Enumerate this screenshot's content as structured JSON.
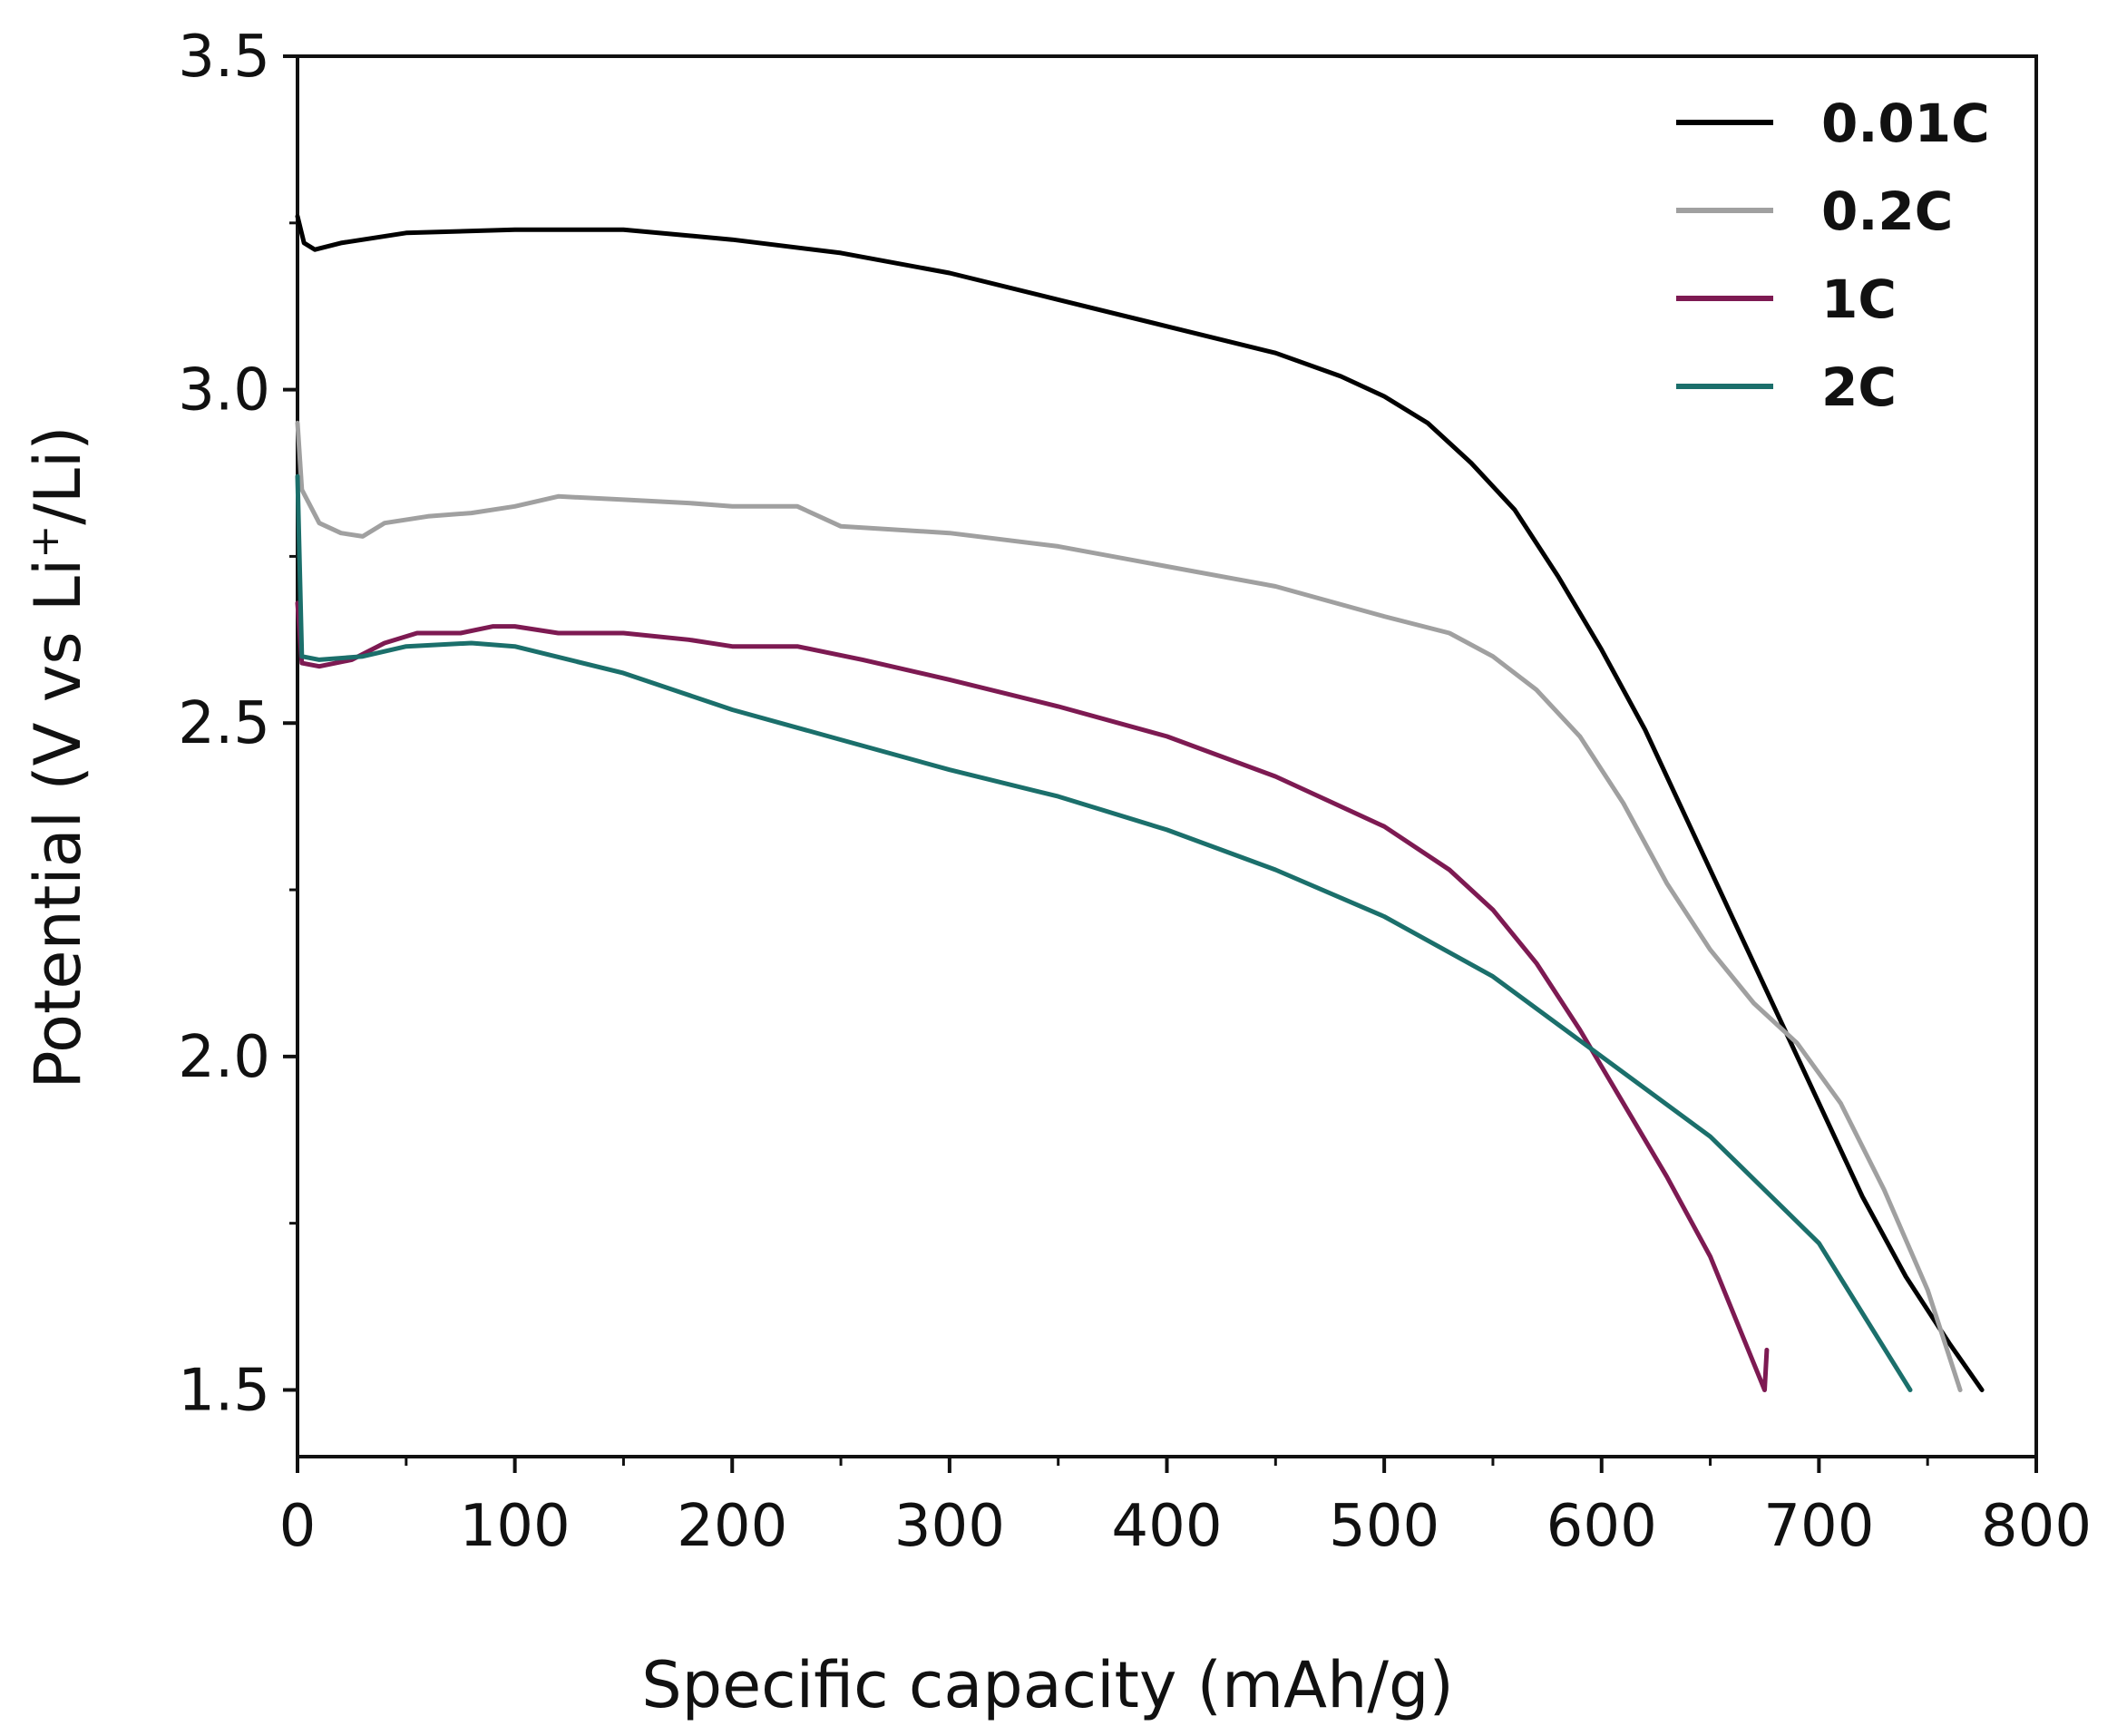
{
  "chart_data": {
    "type": "line",
    "title": "",
    "xlabel": "Specific capacity (mAh/g)",
    "ylabel": "Potential (V vs Li",
    "ylabel_sup": "+",
    "ylabel_end": "/Li)",
    "xlim": [
      0,
      800
    ],
    "ylim": [
      1.4,
      3.5
    ],
    "xticks": [
      0,
      100,
      200,
      300,
      400,
      500,
      600,
      700,
      800
    ],
    "xtick_labels": [
      "0",
      "100",
      "200",
      "300",
      "400",
      "500",
      "600",
      "700",
      "800"
    ],
    "yticks": [
      1.5,
      2.0,
      2.5,
      3.0,
      3.5
    ],
    "ytick_labels": [
      "1.5",
      "2.0",
      "2.5",
      "3.0",
      "3.5"
    ],
    "grid": false,
    "legend_position": "top-right",
    "series": [
      {
        "name": "0.01C",
        "color": "#000000",
        "points": [
          [
            0,
            3.26
          ],
          [
            3,
            3.22
          ],
          [
            8,
            3.21
          ],
          [
            20,
            3.22
          ],
          [
            50,
            3.235
          ],
          [
            100,
            3.24
          ],
          [
            150,
            3.24
          ],
          [
            200,
            3.225
          ],
          [
            250,
            3.205
          ],
          [
            300,
            3.175
          ],
          [
            350,
            3.135
          ],
          [
            400,
            3.095
          ],
          [
            450,
            3.055
          ],
          [
            480,
            3.02
          ],
          [
            500,
            2.99
          ],
          [
            520,
            2.95
          ],
          [
            540,
            2.89
          ],
          [
            560,
            2.82
          ],
          [
            580,
            2.72
          ],
          [
            600,
            2.61
          ],
          [
            620,
            2.49
          ],
          [
            640,
            2.35
          ],
          [
            660,
            2.21
          ],
          [
            680,
            2.07
          ],
          [
            700,
            1.93
          ],
          [
            720,
            1.79
          ],
          [
            740,
            1.67
          ],
          [
            760,
            1.57
          ],
          [
            775,
            1.5
          ]
        ]
      },
      {
        "name": "0.2C",
        "color": "#a0a0a0",
        "points": [
          [
            0,
            2.95
          ],
          [
            2,
            2.85
          ],
          [
            10,
            2.8
          ],
          [
            20,
            2.785
          ],
          [
            30,
            2.78
          ],
          [
            40,
            2.8
          ],
          [
            60,
            2.81
          ],
          [
            80,
            2.815
          ],
          [
            100,
            2.825
          ],
          [
            120,
            2.84
          ],
          [
            150,
            2.835
          ],
          [
            180,
            2.83
          ],
          [
            200,
            2.825
          ],
          [
            230,
            2.825
          ],
          [
            250,
            2.795
          ],
          [
            300,
            2.785
          ],
          [
            350,
            2.765
          ],
          [
            400,
            2.735
          ],
          [
            450,
            2.705
          ],
          [
            500,
            2.66
          ],
          [
            530,
            2.635
          ],
          [
            550,
            2.6
          ],
          [
            570,
            2.55
          ],
          [
            590,
            2.48
          ],
          [
            610,
            2.38
          ],
          [
            630,
            2.26
          ],
          [
            650,
            2.16
          ],
          [
            670,
            2.08
          ],
          [
            690,
            2.02
          ],
          [
            710,
            1.93
          ],
          [
            730,
            1.8
          ],
          [
            750,
            1.65
          ],
          [
            765,
            1.5
          ]
        ]
      },
      {
        "name": "1C",
        "color": "#7d1a52",
        "points": [
          [
            0,
            2.68
          ],
          [
            2,
            2.59
          ],
          [
            10,
            2.585
          ],
          [
            25,
            2.595
          ],
          [
            40,
            2.62
          ],
          [
            55,
            2.635
          ],
          [
            75,
            2.635
          ],
          [
            90,
            2.645
          ],
          [
            100,
            2.645
          ],
          [
            120,
            2.635
          ],
          [
            150,
            2.635
          ],
          [
            180,
            2.625
          ],
          [
            200,
            2.615
          ],
          [
            230,
            2.615
          ],
          [
            260,
            2.595
          ],
          [
            300,
            2.565
          ],
          [
            350,
            2.525
          ],
          [
            400,
            2.48
          ],
          [
            450,
            2.42
          ],
          [
            500,
            2.345
          ],
          [
            530,
            2.28
          ],
          [
            550,
            2.22
          ],
          [
            570,
            2.14
          ],
          [
            590,
            2.04
          ],
          [
            610,
            1.93
          ],
          [
            630,
            1.82
          ],
          [
            650,
            1.7
          ],
          [
            665,
            1.58
          ],
          [
            675,
            1.5
          ],
          [
            676,
            1.56
          ]
        ]
      },
      {
        "name": "2C",
        "color": "#1b6f6b",
        "points": [
          [
            0,
            2.87
          ],
          [
            2,
            2.6
          ],
          [
            10,
            2.595
          ],
          [
            30,
            2.6
          ],
          [
            50,
            2.615
          ],
          [
            80,
            2.62
          ],
          [
            100,
            2.615
          ],
          [
            150,
            2.575
          ],
          [
            200,
            2.52
          ],
          [
            250,
            2.475
          ],
          [
            300,
            2.43
          ],
          [
            350,
            2.39
          ],
          [
            400,
            2.34
          ],
          [
            450,
            2.28
          ],
          [
            500,
            2.21
          ],
          [
            550,
            2.12
          ],
          [
            600,
            2.0
          ],
          [
            650,
            1.88
          ],
          [
            700,
            1.72
          ],
          [
            742,
            1.5
          ]
        ]
      }
    ]
  }
}
